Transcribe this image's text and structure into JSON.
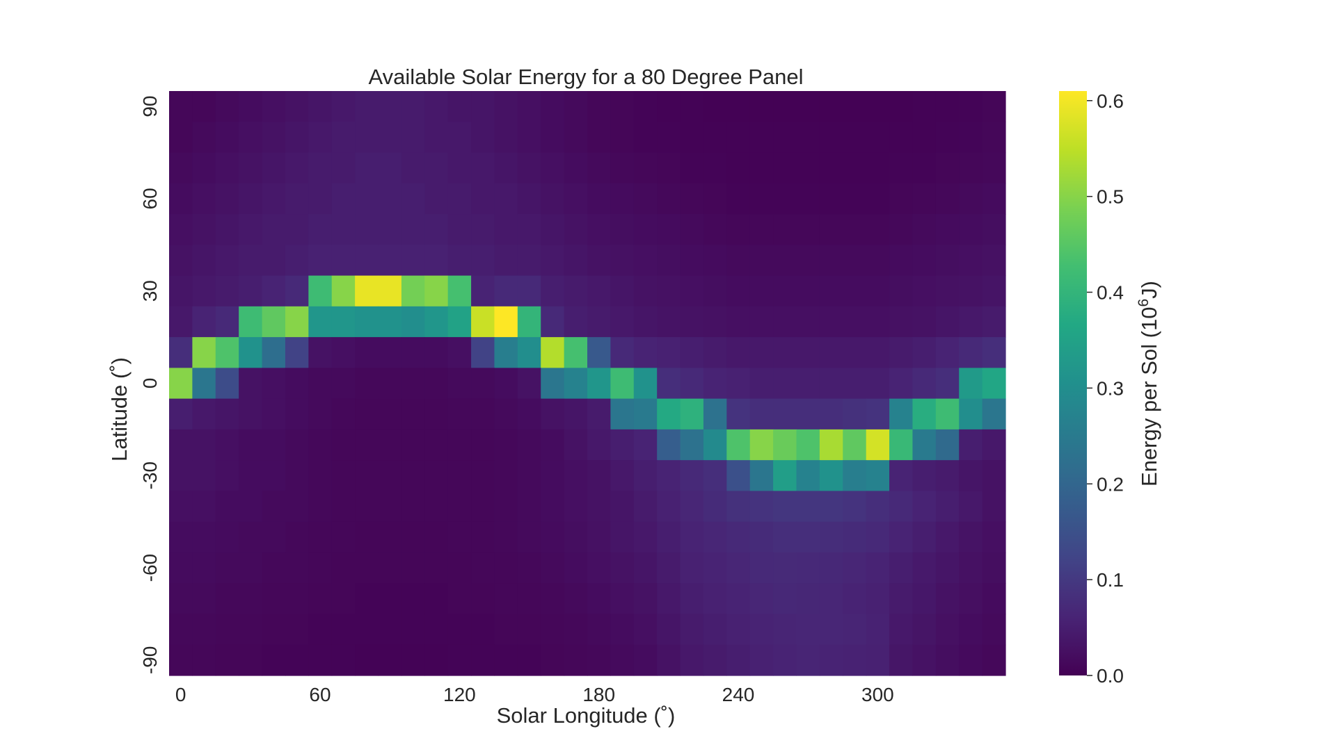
{
  "chart_data": {
    "type": "heatmap",
    "title": "Available Solar Energy for a 80 Degree Panel",
    "xlabel": "Solar Longitude (˚)",
    "ylabel": "Latitude (˚)",
    "colorbar_label_main": "Energy per Sol (10",
    "colorbar_label_sup": "6",
    "colorbar_label_unit": "J)",
    "colormap": "viridis",
    "x_start": 0,
    "x_step": 10,
    "x_count": 36,
    "x_ticks": [
      "0",
      "60",
      "120",
      "180",
      "240",
      "300"
    ],
    "y_ticks": [
      "90",
      "60",
      "30",
      "0",
      "-30",
      "-60",
      "-90"
    ],
    "row_latitudes": [
      90,
      80,
      70,
      60,
      50,
      40,
      30,
      20,
      10,
      0,
      -10,
      -20,
      -30,
      -40,
      -50,
      -60,
      -70,
      -80,
      -90
    ],
    "vmin": 0.0,
    "vmax": 0.61,
    "colorbar_ticks": [
      "0.0",
      "0.1",
      "0.2",
      "0.3",
      "0.4",
      "0.5",
      "0.6"
    ],
    "grid": false,
    "values": [
      [
        0.01,
        0.01,
        0.015,
        0.02,
        0.025,
        0.03,
        0.035,
        0.04,
        0.045,
        0.045,
        0.045,
        0.04,
        0.035,
        0.035,
        0.03,
        0.025,
        0.02,
        0.015,
        0.01,
        0.008,
        0.005,
        0.004,
        0.003,
        0.002,
        0.002,
        0.002,
        0.002,
        0.002,
        0.002,
        0.002,
        0.002,
        0.002,
        0.003,
        0.004,
        0.006,
        0.008
      ],
      [
        0.01,
        0.015,
        0.02,
        0.025,
        0.03,
        0.035,
        0.04,
        0.045,
        0.045,
        0.045,
        0.045,
        0.04,
        0.04,
        0.035,
        0.03,
        0.025,
        0.02,
        0.015,
        0.01,
        0.008,
        0.006,
        0.005,
        0.004,
        0.003,
        0.003,
        0.003,
        0.003,
        0.003,
        0.003,
        0.003,
        0.003,
        0.003,
        0.004,
        0.005,
        0.007,
        0.01
      ],
      [
        0.015,
        0.02,
        0.025,
        0.03,
        0.035,
        0.04,
        0.045,
        0.045,
        0.05,
        0.05,
        0.045,
        0.045,
        0.04,
        0.04,
        0.035,
        0.03,
        0.025,
        0.02,
        0.015,
        0.012,
        0.01,
        0.008,
        0.006,
        0.005,
        0.004,
        0.004,
        0.004,
        0.004,
        0.004,
        0.004,
        0.004,
        0.005,
        0.006,
        0.008,
        0.01,
        0.012
      ],
      [
        0.02,
        0.025,
        0.03,
        0.035,
        0.04,
        0.045,
        0.045,
        0.05,
        0.05,
        0.05,
        0.05,
        0.045,
        0.045,
        0.04,
        0.04,
        0.035,
        0.03,
        0.025,
        0.02,
        0.018,
        0.015,
        0.012,
        0.01,
        0.008,
        0.006,
        0.006,
        0.006,
        0.006,
        0.006,
        0.006,
        0.006,
        0.008,
        0.01,
        0.012,
        0.015,
        0.018
      ],
      [
        0.025,
        0.03,
        0.035,
        0.04,
        0.045,
        0.045,
        0.05,
        0.05,
        0.05,
        0.05,
        0.05,
        0.05,
        0.045,
        0.045,
        0.04,
        0.04,
        0.035,
        0.03,
        0.025,
        0.022,
        0.02,
        0.018,
        0.015,
        0.012,
        0.01,
        0.01,
        0.01,
        0.01,
        0.01,
        0.01,
        0.01,
        0.012,
        0.015,
        0.018,
        0.02,
        0.022
      ],
      [
        0.03,
        0.035,
        0.04,
        0.045,
        0.045,
        0.05,
        0.055,
        0.055,
        0.055,
        0.055,
        0.055,
        0.055,
        0.05,
        0.05,
        0.045,
        0.045,
        0.04,
        0.035,
        0.03,
        0.028,
        0.025,
        0.022,
        0.02,
        0.018,
        0.015,
        0.015,
        0.015,
        0.015,
        0.015,
        0.015,
        0.015,
        0.018,
        0.02,
        0.022,
        0.025,
        0.028
      ],
      [
        0.035,
        0.04,
        0.045,
        0.05,
        0.06,
        0.07,
        0.42,
        0.5,
        0.59,
        0.59,
        0.48,
        0.5,
        0.43,
        0.06,
        0.07,
        0.07,
        0.05,
        0.045,
        0.04,
        0.035,
        0.03,
        0.028,
        0.025,
        0.022,
        0.02,
        0.02,
        0.02,
        0.02,
        0.02,
        0.02,
        0.02,
        0.022,
        0.025,
        0.028,
        0.03,
        0.033
      ],
      [
        0.04,
        0.06,
        0.07,
        0.42,
        0.46,
        0.5,
        0.32,
        0.32,
        0.31,
        0.31,
        0.3,
        0.32,
        0.35,
        0.56,
        0.61,
        0.4,
        0.07,
        0.05,
        0.045,
        0.04,
        0.035,
        0.032,
        0.03,
        0.028,
        0.025,
        0.025,
        0.025,
        0.025,
        0.025,
        0.025,
        0.025,
        0.028,
        0.03,
        0.035,
        0.04,
        0.045
      ],
      [
        0.08,
        0.5,
        0.44,
        0.31,
        0.22,
        0.12,
        0.03,
        0.025,
        0.02,
        0.02,
        0.02,
        0.02,
        0.025,
        0.12,
        0.26,
        0.3,
        0.54,
        0.43,
        0.17,
        0.07,
        0.06,
        0.055,
        0.05,
        0.045,
        0.04,
        0.04,
        0.04,
        0.04,
        0.04,
        0.04,
        0.04,
        0.045,
        0.05,
        0.06,
        0.07,
        0.08
      ],
      [
        0.5,
        0.24,
        0.14,
        0.03,
        0.025,
        0.02,
        0.015,
        0.015,
        0.012,
        0.012,
        0.012,
        0.012,
        0.015,
        0.015,
        0.02,
        0.03,
        0.24,
        0.27,
        0.32,
        0.42,
        0.31,
        0.08,
        0.07,
        0.06,
        0.055,
        0.05,
        0.05,
        0.05,
        0.05,
        0.05,
        0.05,
        0.06,
        0.07,
        0.08,
        0.33,
        0.36
      ],
      [
        0.05,
        0.04,
        0.035,
        0.03,
        0.025,
        0.02,
        0.015,
        0.012,
        0.01,
        0.01,
        0.01,
        0.01,
        0.012,
        0.012,
        0.015,
        0.02,
        0.03,
        0.035,
        0.045,
        0.24,
        0.25,
        0.37,
        0.39,
        0.23,
        0.09,
        0.08,
        0.08,
        0.08,
        0.08,
        0.085,
        0.09,
        0.27,
        0.38,
        0.42,
        0.3,
        0.24
      ],
      [
        0.03,
        0.03,
        0.025,
        0.02,
        0.02,
        0.015,
        0.012,
        0.01,
        0.01,
        0.01,
        0.01,
        0.01,
        0.01,
        0.01,
        0.012,
        0.015,
        0.02,
        0.03,
        0.04,
        0.05,
        0.06,
        0.18,
        0.23,
        0.29,
        0.44,
        0.5,
        0.47,
        0.44,
        0.53,
        0.46,
        0.57,
        0.41,
        0.25,
        0.21,
        0.05,
        0.04
      ],
      [
        0.03,
        0.03,
        0.025,
        0.02,
        0.02,
        0.015,
        0.012,
        0.01,
        0.01,
        0.01,
        0.01,
        0.01,
        0.01,
        0.01,
        0.012,
        0.015,
        0.02,
        0.025,
        0.03,
        0.04,
        0.05,
        0.06,
        0.07,
        0.08,
        0.15,
        0.24,
        0.34,
        0.27,
        0.31,
        0.26,
        0.27,
        0.06,
        0.05,
        0.045,
        0.035,
        0.03
      ],
      [
        0.025,
        0.025,
        0.02,
        0.02,
        0.015,
        0.015,
        0.012,
        0.01,
        0.01,
        0.01,
        0.01,
        0.01,
        0.01,
        0.01,
        0.012,
        0.015,
        0.02,
        0.025,
        0.03,
        0.035,
        0.045,
        0.055,
        0.065,
        0.075,
        0.085,
        0.09,
        0.095,
        0.095,
        0.095,
        0.09,
        0.08,
        0.07,
        0.06,
        0.05,
        0.04,
        0.03
      ],
      [
        0.02,
        0.02,
        0.018,
        0.015,
        0.015,
        0.012,
        0.01,
        0.01,
        0.008,
        0.008,
        0.008,
        0.008,
        0.01,
        0.01,
        0.012,
        0.015,
        0.018,
        0.022,
        0.028,
        0.035,
        0.04,
        0.05,
        0.06,
        0.065,
        0.07,
        0.075,
        0.08,
        0.08,
        0.078,
        0.075,
        0.07,
        0.06,
        0.05,
        0.04,
        0.032,
        0.025
      ],
      [
        0.018,
        0.018,
        0.015,
        0.015,
        0.012,
        0.012,
        0.01,
        0.008,
        0.008,
        0.008,
        0.008,
        0.008,
        0.008,
        0.01,
        0.01,
        0.012,
        0.015,
        0.02,
        0.025,
        0.03,
        0.035,
        0.045,
        0.055,
        0.06,
        0.065,
        0.07,
        0.072,
        0.07,
        0.068,
        0.065,
        0.06,
        0.05,
        0.042,
        0.035,
        0.028,
        0.022
      ],
      [
        0.015,
        0.015,
        0.012,
        0.012,
        0.01,
        0.01,
        0.008,
        0.008,
        0.006,
        0.006,
        0.006,
        0.006,
        0.008,
        0.008,
        0.01,
        0.01,
        0.012,
        0.015,
        0.02,
        0.025,
        0.03,
        0.04,
        0.05,
        0.055,
        0.06,
        0.065,
        0.068,
        0.066,
        0.064,
        0.06,
        0.055,
        0.045,
        0.038,
        0.03,
        0.024,
        0.018
      ],
      [
        0.012,
        0.012,
        0.01,
        0.01,
        0.008,
        0.008,
        0.006,
        0.006,
        0.005,
        0.005,
        0.005,
        0.005,
        0.006,
        0.006,
        0.008,
        0.008,
        0.01,
        0.012,
        0.015,
        0.02,
        0.025,
        0.035,
        0.045,
        0.05,
        0.055,
        0.06,
        0.062,
        0.065,
        0.064,
        0.062,
        0.058,
        0.04,
        0.034,
        0.026,
        0.02,
        0.015
      ],
      [
        0.01,
        0.01,
        0.008,
        0.008,
        0.006,
        0.006,
        0.005,
        0.005,
        0.004,
        0.004,
        0.004,
        0.004,
        0.005,
        0.005,
        0.006,
        0.006,
        0.008,
        0.01,
        0.012,
        0.016,
        0.02,
        0.03,
        0.04,
        0.045,
        0.05,
        0.055,
        0.06,
        0.062,
        0.06,
        0.058,
        0.055,
        0.036,
        0.03,
        0.022,
        0.016,
        0.012
      ]
    ]
  }
}
